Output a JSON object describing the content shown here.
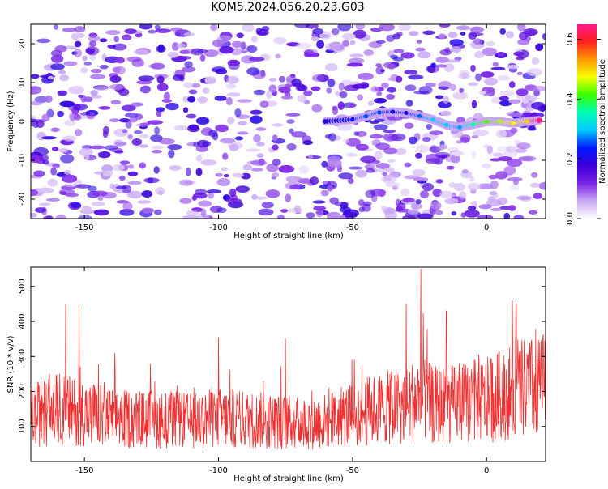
{
  "figure": {
    "title": "KOM5.2024.056.20.23.G03"
  },
  "chart_data": [
    {
      "type": "heatmap",
      "title": "KOM5.2024.056.20.23.G03",
      "xlabel": "Height of straight line (km)",
      "ylabel": "Frequency (Hz)",
      "xlim": [
        -170,
        22
      ],
      "ylim": [
        -25,
        25
      ],
      "xticks": [
        -150,
        -100,
        -50,
        0
      ],
      "yticks": [
        -20,
        -10,
        0,
        10,
        20
      ],
      "colorbar": {
        "label": "Normalized spectral amplitude",
        "range": [
          0,
          0.65
        ],
        "ticks": [
          "0.0",
          "0.2",
          "0.4",
          "0.6"
        ],
        "colormap": [
          "#ffffff",
          "#c9a8f5",
          "#7b22e6",
          "#3a00d9",
          "#0018ff",
          "#00c8ff",
          "#00ffb8",
          "#37ff00",
          "#f4ff00",
          "#ff9a00",
          "#ff2020",
          "#ff1a8c"
        ]
      },
      "ridge": {
        "description": "Signal track near 0 Hz, strongest at right end",
        "x": [
          -60,
          -50,
          -45,
          -40,
          -35,
          -30,
          -25,
          -20,
          -15,
          -10,
          -5,
          0,
          5,
          10,
          15,
          20
        ],
        "frequency": [
          0.0,
          0.5,
          1.3,
          2.3,
          2.5,
          2.2,
          1.4,
          0.5,
          -0.9,
          -1.5,
          -0.8,
          -0.1,
          0.0,
          -0.5,
          0.0,
          0.3
        ],
        "amplitude": [
          0.2,
          0.22,
          0.25,
          0.25,
          0.22,
          0.2,
          0.26,
          0.3,
          0.3,
          0.28,
          0.36,
          0.42,
          0.45,
          0.48,
          0.5,
          0.65
        ]
      }
    },
    {
      "type": "line",
      "xlabel": "Height of straight line (km)",
      "ylabel": "SNR (10 * v/v)",
      "xlim": [
        -170,
        22
      ],
      "ylim": [
        0,
        555
      ],
      "xticks": [
        -150,
        -100,
        -50,
        0
      ],
      "yticks": [
        100,
        200,
        300,
        400,
        500
      ],
      "color": "#f03030",
      "x": [
        -170,
        -160,
        -150,
        -140,
        -130,
        -120,
        -110,
        -100,
        -90,
        -80,
        -70,
        -60,
        -50,
        -40,
        -30,
        -25,
        -20,
        -10,
        0,
        10,
        20
      ],
      "values": [
        130,
        150,
        140,
        125,
        120,
        120,
        115,
        125,
        120,
        115,
        110,
        115,
        135,
        150,
        160,
        185,
        160,
        165,
        175,
        200,
        215
      ],
      "peaks": [
        {
          "x": -157,
          "y": 448
        },
        {
          "x": -152,
          "y": 445
        },
        {
          "x": -100,
          "y": 355
        },
        {
          "x": -75,
          "y": 350
        },
        {
          "x": -30,
          "y": 450
        },
        {
          "x": -24.5,
          "y": 550
        },
        {
          "x": -15,
          "y": 430
        },
        {
          "x": 11,
          "y": 450
        },
        {
          "x": 22,
          "y": 400
        }
      ]
    }
  ]
}
